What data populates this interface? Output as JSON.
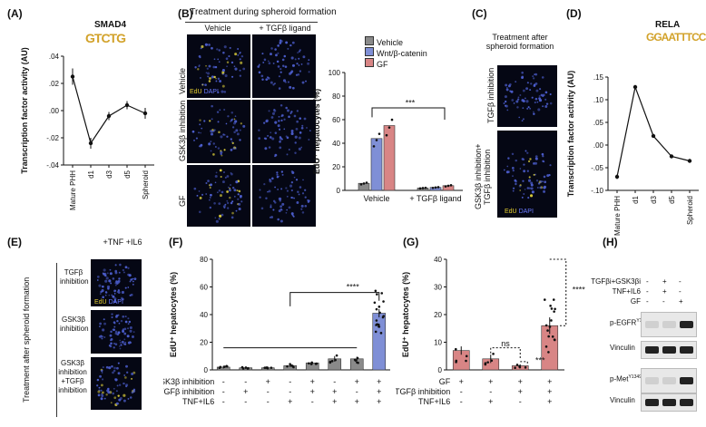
{
  "panels": {
    "A": {
      "letter": "(A)",
      "title": "SMAD4",
      "motif": "GTCTG",
      "ylabel": "Transcription factor activity (AU)",
      "yticks": [
        ".04",
        ".02",
        ".00",
        "-.02",
        "-.04"
      ],
      "xcats": [
        "Mature PHH",
        "d1",
        "d3",
        "d5",
        "Spheroid"
      ]
    },
    "B": {
      "letter": "(B)",
      "header": "Treatment during spheroid formation",
      "cols": [
        "Vehicle",
        "+ TGFβ ligand"
      ],
      "rows": [
        "Vehicle",
        "GSK3β inhibition",
        "GF"
      ],
      "tag_edu": "EdU",
      "tag_dapi": "DAPI",
      "ylabel": "EdU⁺ hepatocytes (%)",
      "yticks": [
        "100",
        "80",
        "60",
        "40",
        "20",
        "0"
      ],
      "legend": [
        "Vehicle",
        "Wnt/β-catenin",
        "GF"
      ],
      "groups": [
        "Vehicle",
        "+ TGFβ ligand"
      ],
      "sig": "***"
    },
    "C": {
      "letter": "(C)",
      "header": "Treatment after spheroid formation",
      "rows": [
        "TGFβ inhibition",
        "GSK3β inhibition+ TGFβ inhibition"
      ],
      "tag_edu": "EdU",
      "tag_dapi": "DAPI"
    },
    "D": {
      "letter": "(D)",
      "title": "RELA",
      "motif": "GGAATTTCC",
      "ylabel": "Transcription factor activity (AU)",
      "yticks": [
        ".15",
        ".10",
        ".05",
        ".00",
        "-.05",
        "-.10"
      ],
      "xcats": [
        "Mature PHH",
        "d1",
        "d3",
        "d5",
        "Spheroid"
      ]
    },
    "E": {
      "letter": "(E)",
      "col": "+TNF +IL6",
      "side": "Treatment after spheroid formation",
      "rows": [
        "TGFβ inhibition",
        "GSK3β inhibition",
        "GSK3β inhibition +TGFβ inhibition"
      ],
      "tag_edu": "EdU",
      "tag_dapi": "DAPI"
    },
    "F": {
      "letter": "(F)",
      "ylabel": "EdU⁺ hepatocytes (%)",
      "yticks": [
        "80",
        "60",
        "40",
        "20",
        "0"
      ],
      "sig": "****",
      "table_rows": [
        "GSK3β inhibition",
        "TGFβ inhibition",
        "TNF+IL6"
      ],
      "table": [
        [
          "-",
          "-",
          "+",
          "-",
          "+",
          "-",
          "+",
          "+"
        ],
        [
          "-",
          "+",
          "-",
          "-",
          "+",
          "+",
          "-",
          "+"
        ],
        [
          "-",
          "-",
          "-",
          "+",
          "-",
          "+",
          "+",
          "+"
        ]
      ]
    },
    "G": {
      "letter": "(G)",
      "ylabel": "EdU⁺ hepatocytes (%)",
      "yticks": [
        "40",
        "30",
        "20",
        "10",
        "0"
      ],
      "sig1": "ns",
      "sig2": "***",
      "sig3": "****",
      "table_rows": [
        "GF",
        "TGFβ inhibition",
        "TNF+IL6"
      ],
      "table": [
        [
          "+",
          "+",
          "+",
          "+"
        ],
        [
          "-",
          "-",
          "+",
          "+"
        ],
        [
          "-",
          "+",
          "-",
          "+"
        ]
      ]
    },
    "H": {
      "letter": "(H)",
      "cond_rows": [
        "TGFβi+GSK3βi",
        "TNF+IL6",
        "GF"
      ],
      "cond": [
        [
          "-",
          "+",
          "-"
        ],
        [
          "-",
          "+",
          "-"
        ],
        [
          "-",
          "-",
          "+"
        ]
      ],
      "blots": [
        "p-EGFR",
        "Vinculin",
        "p-Met",
        "Vinculin"
      ],
      "sup1": "Y1068",
      "sup2": "Y1349"
    }
  },
  "chart_data": [
    {
      "type": "line",
      "panel": "A",
      "categories": [
        "Mature PHH",
        "d1",
        "d3",
        "d5",
        "Spheroid"
      ],
      "values": [
        0.025,
        -0.024,
        -0.004,
        0.004,
        -0.002
      ],
      "errors": [
        0.006,
        0.004,
        0.003,
        0.003,
        0.004
      ],
      "ylim": [
        -0.04,
        0.04
      ]
    },
    {
      "type": "line",
      "panel": "D",
      "categories": [
        "Mature PHH",
        "d1",
        "d3",
        "d5",
        "Spheroid"
      ],
      "values": [
        -0.07,
        0.128,
        0.02,
        -0.025,
        -0.035
      ],
      "errors": [
        0.005,
        0.004,
        0.003,
        0.002,
        0.003
      ],
      "ylim": [
        -0.1,
        0.15
      ]
    },
    {
      "type": "bar",
      "panel": "B",
      "groups": [
        "Vehicle",
        "+ TGFβ ligand"
      ],
      "series": [
        {
          "name": "Vehicle",
          "values": [
            6,
            2
          ],
          "color": "#8a8a8a"
        },
        {
          "name": "Wnt/β-catenin",
          "values": [
            44,
            2.5
          ],
          "color": "#7f8fd6"
        },
        {
          "name": "GF",
          "values": [
            55,
            4
          ],
          "color": "#d88585"
        }
      ],
      "ylim": [
        0,
        100
      ]
    },
    {
      "type": "bar",
      "panel": "F",
      "values": [
        2,
        1.5,
        1.5,
        3,
        5,
        8,
        8,
        41
      ],
      "errors": [
        1,
        0.8,
        0.8,
        1,
        1,
        2,
        1.5,
        3
      ],
      "colors": [
        "#8a8a8a",
        "#8a8a8a",
        "#8a8a8a",
        "#8a8a8a",
        "#8a8a8a",
        "#8a8a8a",
        "#8a8a8a",
        "#7f8fd6"
      ],
      "ylim": [
        0,
        80
      ]
    },
    {
      "type": "bar",
      "panel": "G",
      "values": [
        7,
        4,
        1.5,
        16
      ],
      "errors": [
        1.5,
        1.5,
        0.5,
        3
      ],
      "color": "#d88585",
      "ylim": [
        0,
        40
      ]
    }
  ]
}
